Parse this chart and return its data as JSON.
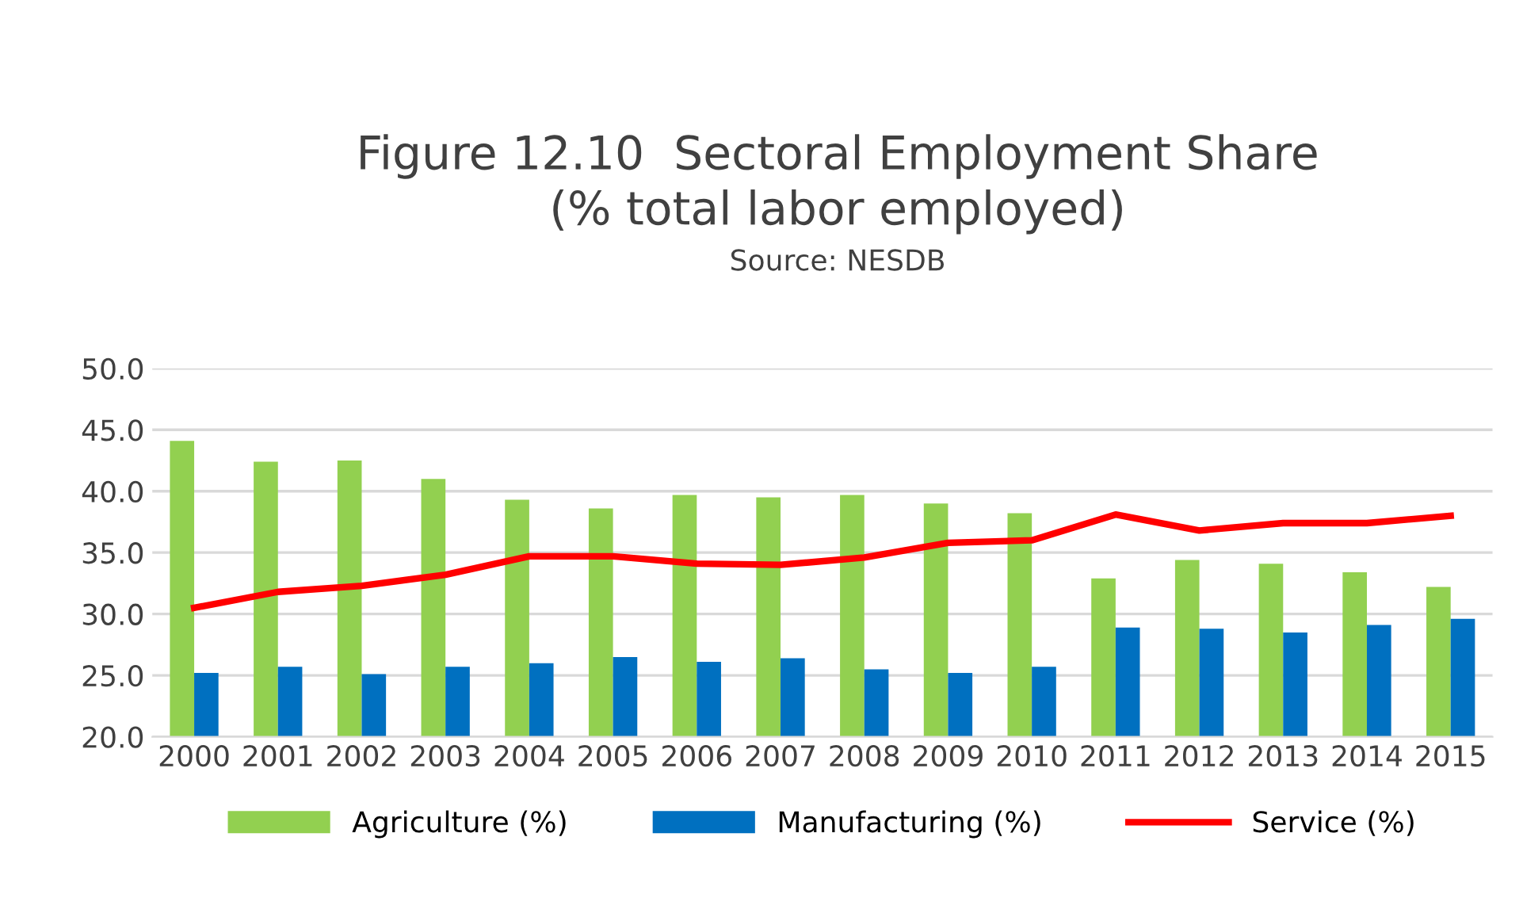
{
  "chart_data": {
    "type": "bar",
    "title": "Figure 12.10  Sectoral Employment Share\n(% total labor employed)",
    "subtitle": "Source: NESDB",
    "categories": [
      "2000",
      "2001",
      "2002",
      "2003",
      "2004",
      "2005",
      "2006",
      "2007",
      "2008",
      "2009",
      "2010",
      "2011",
      "2012",
      "2013",
      "2014",
      "2015"
    ],
    "series": [
      {
        "name": "Agriculture (%)",
        "color": "#92d050",
        "values": [
          44.1,
          42.4,
          42.5,
          41.0,
          39.3,
          38.6,
          39.7,
          39.5,
          39.7,
          39.0,
          38.2,
          32.9,
          34.4,
          34.1,
          33.4,
          32.2
        ]
      },
      {
        "name": "Manufacturing (%)",
        "color": "#0070c0",
        "values": [
          25.2,
          25.7,
          25.1,
          25.7,
          26.0,
          26.5,
          26.1,
          26.4,
          25.5,
          25.2,
          25.7,
          28.9,
          28.8,
          28.5,
          29.1,
          29.6
        ]
      },
      {
        "name": "Service (%)",
        "type": "line",
        "color": "#ff0000",
        "values": [
          30.5,
          31.8,
          32.3,
          33.2,
          34.7,
          34.7,
          34.1,
          34.0,
          34.6,
          35.8,
          36.0,
          38.1,
          36.8,
          37.4,
          37.4,
          38.0
        ]
      }
    ],
    "ylim": [
      20,
      50
    ],
    "yticks": [
      {
        "value": 20,
        "label": "20.0"
      },
      {
        "value": 25,
        "label": "25.0"
      },
      {
        "value": 30,
        "label": "30.0"
      },
      {
        "value": 35,
        "label": "35.0"
      },
      {
        "value": 40,
        "label": "40.0"
      },
      {
        "value": 45,
        "label": "45.0"
      },
      {
        "value": 50,
        "label": "50.0"
      }
    ],
    "grid": "y",
    "legend": "bottom",
    "marker": "none",
    "line_style": "solid"
  }
}
